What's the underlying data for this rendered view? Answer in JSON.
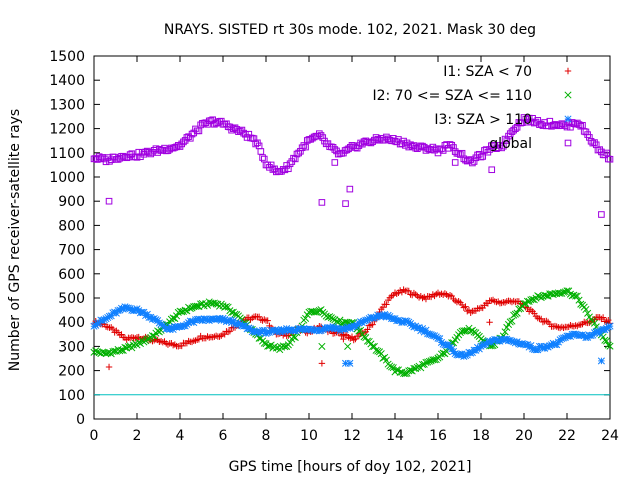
{
  "chart_data": {
    "type": "scatter",
    "title": "NRAYS. SISTED rt 30s mode. 102, 2021. Mask 30 deg",
    "xlabel": "GPS time [hours of doy 102, 2021]",
    "ylabel": "Number of GPS receiver-satellite rays",
    "xlim": [
      0,
      24
    ],
    "ylim": [
      0,
      1500
    ],
    "xticks": [
      "0",
      "2",
      "4",
      "6",
      "8",
      "10",
      "12",
      "14",
      "16",
      "18",
      "20",
      "22",
      "24"
    ],
    "yticks": [
      "0",
      "100",
      "200",
      "300",
      "400",
      "500",
      "600",
      "700",
      "800",
      "900",
      "1000",
      "1100",
      "1200",
      "1300",
      "1400",
      "1500"
    ],
    "reference_line": {
      "y": 100,
      "color": "#00c0c0"
    },
    "legend_position": "top-right",
    "series": [
      {
        "name": "I1: SZA < 70",
        "marker": "plus",
        "color": "#e00000",
        "x": [
          0,
          0.5,
          1,
          1.5,
          2,
          2.5,
          3,
          3.5,
          4,
          4.5,
          5,
          5.5,
          6,
          6.5,
          7,
          7.5,
          8,
          8.5,
          9,
          9.5,
          10,
          10.5,
          11,
          11.5,
          12,
          12.5,
          13,
          13.5,
          14,
          14.5,
          15,
          15.5,
          16,
          16.5,
          17,
          17.5,
          18,
          18.5,
          19,
          19.5,
          20,
          20.5,
          21,
          21.5,
          22,
          22.5,
          23,
          23.5,
          24
        ],
        "values": [
          400,
          390,
          360,
          330,
          340,
          330,
          320,
          310,
          305,
          320,
          340,
          340,
          350,
          380,
          410,
          420,
          410,
          350,
          350,
          370,
          360,
          380,
          360,
          350,
          330,
          350,
          400,
          470,
          520,
          530,
          510,
          500,
          520,
          510,
          480,
          440,
          460,
          490,
          480,
          490,
          470,
          430,
          400,
          380,
          380,
          390,
          400,
          420,
          400
        ],
        "outliers": [
          [
            0.7,
            215
          ],
          [
            10.6,
            230
          ],
          [
            11.6,
            330
          ],
          [
            12.0,
            340
          ],
          [
            18.4,
            400
          ]
        ]
      },
      {
        "name": "I2: 70 <= SZA <= 110",
        "marker": "cross",
        "color": "#00b000",
        "x": [
          0,
          0.5,
          1,
          1.5,
          2,
          2.5,
          3,
          3.5,
          4,
          4.5,
          5,
          5.5,
          6,
          6.5,
          7,
          7.5,
          8,
          8.5,
          9,
          9.5,
          10,
          10.5,
          11,
          11.5,
          12,
          12.5,
          13,
          13.5,
          14,
          14.5,
          15,
          15.5,
          16,
          16.5,
          17,
          17.5,
          18,
          18.5,
          19,
          19.5,
          20,
          20.5,
          21,
          21.5,
          22,
          22.5,
          23,
          23.5,
          24
        ],
        "values": [
          280,
          270,
          280,
          290,
          310,
          330,
          360,
          400,
          440,
          460,
          470,
          480,
          470,
          440,
          400,
          350,
          310,
          290,
          300,
          360,
          440,
          450,
          420,
          400,
          400,
          350,
          300,
          250,
          200,
          190,
          210,
          230,
          250,
          290,
          360,
          370,
          330,
          300,
          340,
          420,
          480,
          500,
          510,
          520,
          530,
          500,
          430,
          360,
          300
        ],
        "outliers": [
          [
            10.6,
            300
          ],
          [
            11.8,
            300
          ]
        ]
      },
      {
        "name": "I3: SZA > 110",
        "marker": "star",
        "color": "#1080ff",
        "x": [
          0,
          0.5,
          1,
          1.5,
          2,
          2.5,
          3,
          3.5,
          4,
          4.5,
          5,
          5.5,
          6,
          6.5,
          7,
          7.5,
          8,
          8.5,
          9,
          9.5,
          10,
          10.5,
          11,
          11.5,
          12,
          12.5,
          13,
          13.5,
          14,
          14.5,
          15,
          15.5,
          16,
          16.5,
          17,
          17.5,
          18,
          18.5,
          19,
          19.5,
          20,
          20.5,
          21,
          21.5,
          22,
          22.5,
          23,
          23.5,
          24
        ],
        "values": [
          390,
          410,
          440,
          460,
          450,
          430,
          400,
          370,
          380,
          400,
          410,
          410,
          410,
          400,
          380,
          360,
          360,
          360,
          370,
          370,
          370,
          370,
          380,
          370,
          380,
          400,
          420,
          430,
          410,
          400,
          380,
          360,
          330,
          300,
          260,
          270,
          300,
          320,
          330,
          320,
          310,
          290,
          300,
          310,
          340,
          350,
          340,
          360,
          380
        ],
        "outliers": [
          [
            11.7,
            230
          ],
          [
            11.9,
            230
          ],
          [
            23.6,
            240
          ]
        ]
      },
      {
        "name": "global",
        "marker": "square",
        "color": "#a000e0",
        "x": [
          0,
          0.5,
          1,
          1.5,
          2,
          2.5,
          3,
          3.5,
          4,
          4.5,
          5,
          5.5,
          6,
          6.5,
          7,
          7.5,
          8,
          8.5,
          9,
          9.5,
          10,
          10.5,
          11,
          11.5,
          12,
          12.5,
          13,
          13.5,
          14,
          14.5,
          15,
          15.5,
          16,
          16.5,
          17,
          17.5,
          18,
          18.5,
          19,
          19.5,
          20,
          20.5,
          21,
          21.5,
          22,
          22.5,
          23,
          23.5,
          24
        ],
        "values": [
          1080,
          1070,
          1080,
          1090,
          1090,
          1100,
          1110,
          1120,
          1130,
          1170,
          1210,
          1230,
          1220,
          1200,
          1180,
          1150,
          1060,
          1020,
          1040,
          1100,
          1150,
          1170,
          1120,
          1090,
          1120,
          1140,
          1150,
          1160,
          1150,
          1140,
          1120,
          1120,
          1110,
          1130,
          1100,
          1060,
          1090,
          1120,
          1130,
          1200,
          1240,
          1230,
          1220,
          1220,
          1210,
          1230,
          1170,
          1110,
          1080
        ],
        "outliers": [
          [
            0.7,
            900
          ],
          [
            10.6,
            895
          ],
          [
            11.7,
            890
          ],
          [
            11.9,
            950
          ],
          [
            18.5,
            1030
          ],
          [
            23.6,
            845
          ],
          [
            11.2,
            1060
          ],
          [
            16.8,
            1060
          ]
        ]
      }
    ]
  }
}
